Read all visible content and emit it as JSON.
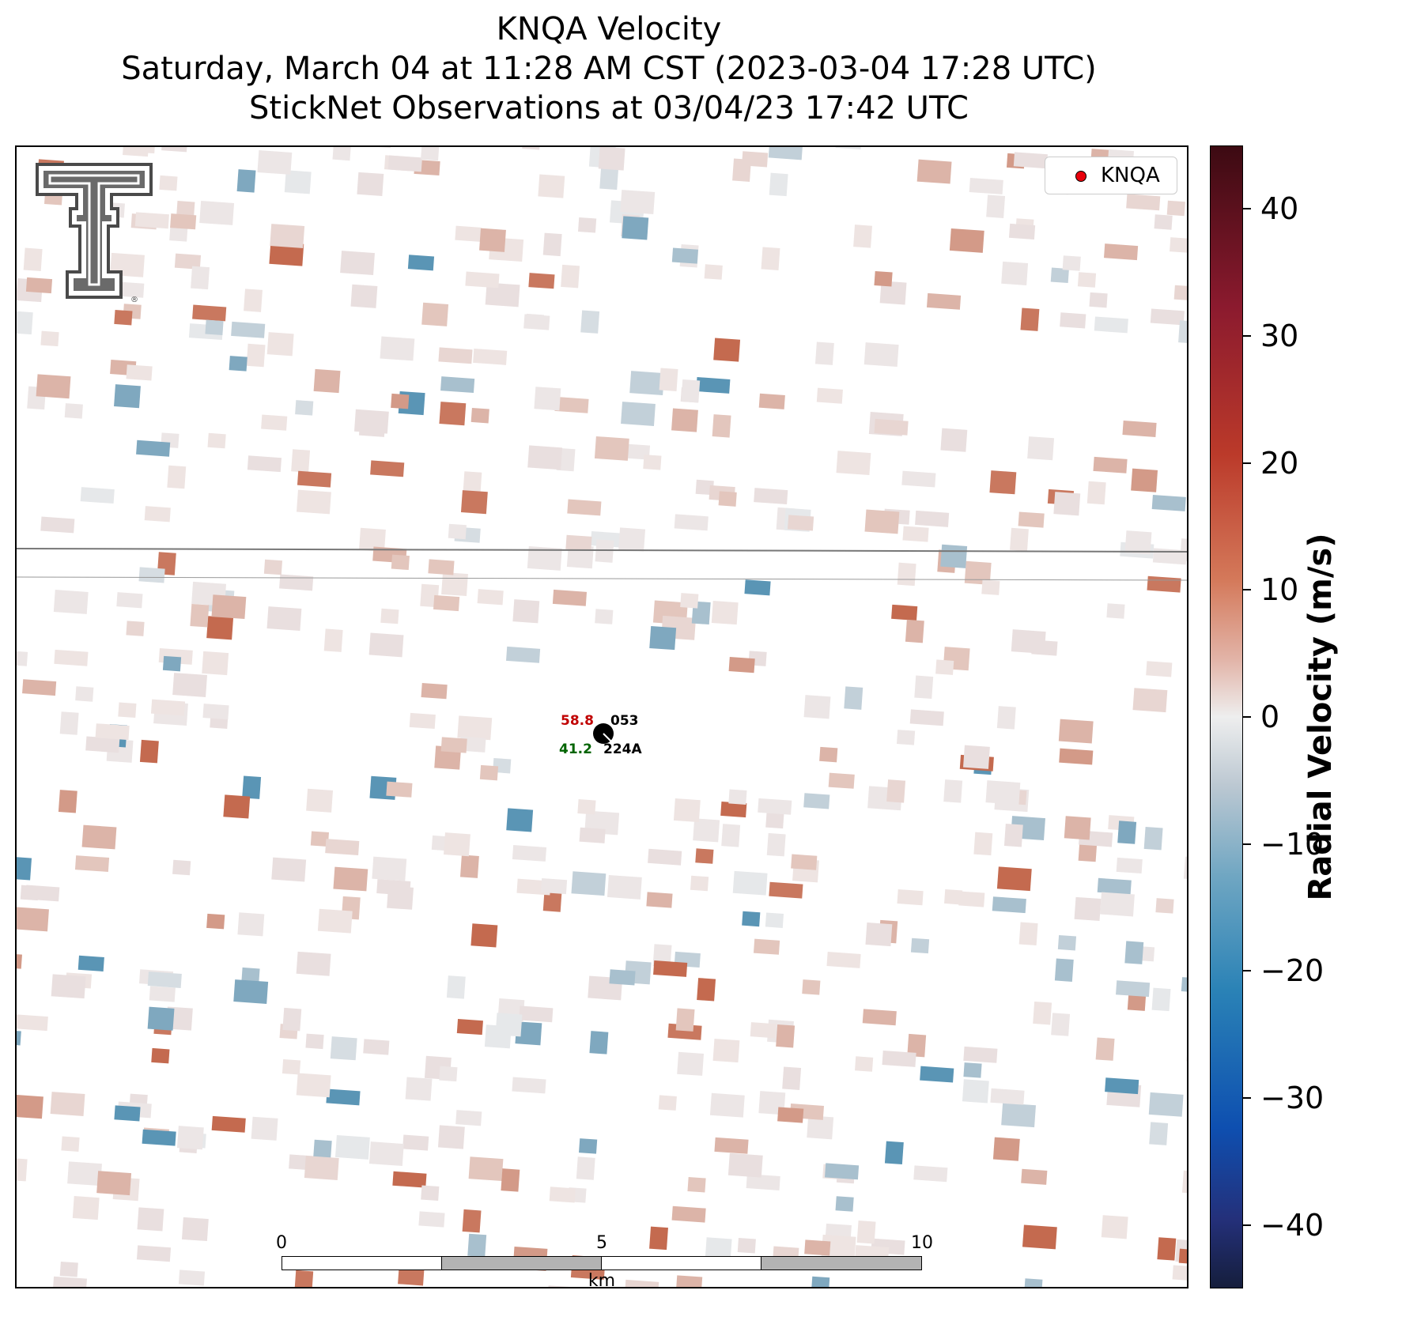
{
  "title": {
    "line1": "KNQA Velocity",
    "line2": "Saturday, March 04 at 11:28 AM CST (2023-03-04 17:28 UTC)",
    "line3": "StickNet Observations at 03/04/23 17:42 UTC"
  },
  "legend": {
    "label": "KNQA",
    "marker_color": "#e8000b"
  },
  "logo": {
    "name": "Texas Tech Double T",
    "color": "#555555"
  },
  "station": {
    "id": "224A",
    "value_top": "58.8",
    "value_top_color": "#c00000",
    "value_bottom": "41.2",
    "value_bottom_color": "#006400",
    "wind_dir": "053"
  },
  "scalebar": {
    "ticks": [
      "0",
      "5",
      "10"
    ],
    "unit": "km",
    "fill_light": "#ffffff",
    "fill_dark": "#b3b3b3"
  },
  "colorbar": {
    "title": "Radial Velocity (m/s)",
    "ticks": [
      "40",
      "30",
      "20",
      "10",
      "0",
      "−10",
      "−20",
      "−30",
      "−40"
    ],
    "range": [
      -45,
      45
    ]
  }
}
